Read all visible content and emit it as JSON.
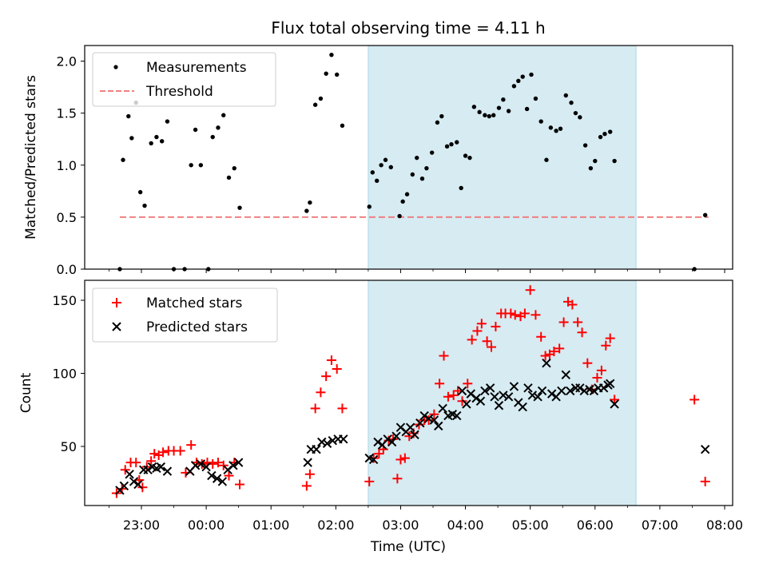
{
  "figure_title": "Flux total observing time = 4.11 h",
  "colors": {
    "measurement": "#000000",
    "threshold": "#f08080",
    "matched": "#ff0000",
    "predicted": "#000000",
    "span": "#add8e6"
  },
  "chart_data": [
    {
      "type": "scatter",
      "title": "Flux total observing time = 4.11 h",
      "xlabel": "",
      "ylabel": "Matched/Predicted stars",
      "xlim": [
        "22:15",
        "08:10"
      ],
      "ylim": [
        0,
        2.15
      ],
      "yticks": [
        "0.0",
        "0.5",
        "1.0",
        "1.5",
        "2.0"
      ],
      "legend": {
        "position": "upper-left",
        "entries": [
          "Measurements",
          "Threshold"
        ]
      },
      "shaded_span": [
        "02:30",
        "06:38"
      ],
      "threshold": {
        "name": "Threshold",
        "value": 0.5,
        "x_start": "22:40",
        "x_end": "07:45"
      },
      "series": [
        {
          "name": "Measurements",
          "points": [
            [
              "22:40",
              0.0
            ],
            [
              "22:43",
              1.05
            ],
            [
              "22:48",
              1.47
            ],
            [
              "22:51",
              1.26
            ],
            [
              "22:55",
              1.6
            ],
            [
              "22:59",
              0.74
            ],
            [
              "23:03",
              0.61
            ],
            [
              "23:09",
              1.21
            ],
            [
              "23:14",
              1.27
            ],
            [
              "23:19",
              1.23
            ],
            [
              "23:24",
              1.42
            ],
            [
              "23:30",
              0.0
            ],
            [
              "23:40",
              0.0
            ],
            [
              "23:46",
              1.0
            ],
            [
              "23:50",
              1.34
            ],
            [
              "23:55",
              1.0
            ],
            [
              "00:02",
              0.0
            ],
            [
              "00:06",
              1.27
            ],
            [
              "00:11",
              1.36
            ],
            [
              "00:16",
              1.48
            ],
            [
              "00:21",
              0.88
            ],
            [
              "00:26",
              0.97
            ],
            [
              "00:31",
              0.59
            ],
            [
              "01:33",
              0.56
            ],
            [
              "01:36",
              0.64
            ],
            [
              "01:41",
              1.58
            ],
            [
              "01:46",
              1.64
            ],
            [
              "01:51",
              1.88
            ],
            [
              "01:56",
              2.06
            ],
            [
              "02:01",
              1.87
            ],
            [
              "02:06",
              1.38
            ],
            [
              "02:31",
              0.6
            ],
            [
              "02:34",
              0.93
            ],
            [
              "02:38",
              0.85
            ],
            [
              "02:42",
              1.0
            ],
            [
              "02:46",
              1.05
            ],
            [
              "02:51",
              0.98
            ],
            [
              "02:59",
              0.51
            ],
            [
              "03:02",
              0.65
            ],
            [
              "03:06",
              0.72
            ],
            [
              "03:11",
              0.91
            ],
            [
              "03:15",
              1.07
            ],
            [
              "03:20",
              0.87
            ],
            [
              "03:24",
              0.97
            ],
            [
              "03:29",
              1.12
            ],
            [
              "03:34",
              1.41
            ],
            [
              "03:38",
              1.47
            ],
            [
              "03:43",
              1.18
            ],
            [
              "03:47",
              1.2
            ],
            [
              "03:52",
              1.22
            ],
            [
              "03:56",
              0.78
            ],
            [
              "04:00",
              1.09
            ],
            [
              "04:04",
              1.07
            ],
            [
              "04:08",
              1.56
            ],
            [
              "04:13",
              1.51
            ],
            [
              "04:18",
              1.48
            ],
            [
              "04:22",
              1.47
            ],
            [
              "04:26",
              1.48
            ],
            [
              "04:31",
              1.55
            ],
            [
              "04:35",
              1.63
            ],
            [
              "04:40",
              1.52
            ],
            [
              "04:45",
              1.76
            ],
            [
              "04:49",
              1.81
            ],
            [
              "04:53",
              1.85
            ],
            [
              "04:57",
              1.54
            ],
            [
              "05:01",
              1.87
            ],
            [
              "05:05",
              1.64
            ],
            [
              "05:10",
              1.42
            ],
            [
              "05:15",
              1.05
            ],
            [
              "05:19",
              1.36
            ],
            [
              "05:24",
              1.33
            ],
            [
              "05:28",
              1.35
            ],
            [
              "05:33",
              1.67
            ],
            [
              "05:38",
              1.6
            ],
            [
              "05:42",
              1.5
            ],
            [
              "05:46",
              1.46
            ],
            [
              "05:51",
              1.19
            ],
            [
              "05:56",
              0.97
            ],
            [
              "06:00",
              1.04
            ],
            [
              "06:05",
              1.27
            ],
            [
              "06:09",
              1.3
            ],
            [
              "06:14",
              1.32
            ],
            [
              "06:18",
              1.04
            ],
            [
              "07:32",
              0.0
            ],
            [
              "07:42",
              0.52
            ]
          ]
        }
      ]
    },
    {
      "type": "scatter",
      "title": "",
      "xlabel": "Time (UTC)",
      "ylabel": "Count",
      "xlim": [
        "22:15",
        "08:10"
      ],
      "ylim": [
        12,
        164
      ],
      "yticks": [
        "50",
        "100",
        "150"
      ],
      "xticks": [
        "23:00",
        "00:00",
        "01:00",
        "02:00",
        "03:00",
        "04:00",
        "05:00",
        "06:00",
        "07:00",
        "08:00"
      ],
      "legend": {
        "position": "upper-left",
        "entries": [
          "Matched stars",
          "Predicted stars"
        ]
      },
      "shaded_span": [
        "02:30",
        "06:38"
      ],
      "series": [
        {
          "name": "Matched stars",
          "marker": "plus",
          "points": [
            [
              "22:37",
              18
            ],
            [
              "22:42",
              21
            ],
            [
              "22:45",
              34
            ],
            [
              "22:50",
              39
            ],
            [
              "22:55",
              39
            ],
            [
              "22:58",
              27
            ],
            [
              "23:01",
              22
            ],
            [
              "23:05",
              36
            ],
            [
              "23:09",
              40
            ],
            [
              "23:12",
              45
            ],
            [
              "23:16",
              44
            ],
            [
              "23:20",
              46
            ],
            [
              "23:25",
              47
            ],
            [
              "23:30",
              47
            ],
            [
              "23:36",
              47
            ],
            [
              "23:41",
              32
            ],
            [
              "23:46",
              51
            ],
            [
              "23:51",
              39
            ],
            [
              "23:56",
              38
            ],
            [
              "00:01",
              39
            ],
            [
              "00:06",
              38
            ],
            [
              "00:11",
              39
            ],
            [
              "00:16",
              37
            ],
            [
              "00:21",
              30
            ],
            [
              "00:26",
              39
            ],
            [
              "00:31",
              24
            ],
            [
              "01:33",
              23
            ],
            [
              "01:36",
              31
            ],
            [
              "01:41",
              76
            ],
            [
              "01:46",
              87
            ],
            [
              "01:51",
              98
            ],
            [
              "01:56",
              109
            ],
            [
              "02:01",
              103
            ],
            [
              "02:06",
              76
            ],
            [
              "02:31",
              26
            ],
            [
              "02:35",
              42
            ],
            [
              "02:40",
              45
            ],
            [
              "02:44",
              48
            ],
            [
              "02:49",
              54
            ],
            [
              "02:53",
              55
            ],
            [
              "02:57",
              28
            ],
            [
              "03:00",
              41
            ],
            [
              "03:04",
              42
            ],
            [
              "03:08",
              57
            ],
            [
              "03:12",
              59
            ],
            [
              "03:17",
              65
            ],
            [
              "03:22",
              68
            ],
            [
              "03:26",
              68
            ],
            [
              "03:31",
              72
            ],
            [
              "03:36",
              93
            ],
            [
              "03:40",
              112
            ],
            [
              "03:44",
              84
            ],
            [
              "03:49",
              85
            ],
            [
              "03:53",
              88
            ],
            [
              "03:57",
              81
            ],
            [
              "04:02",
              93
            ],
            [
              "04:06",
              123
            ],
            [
              "04:11",
              129
            ],
            [
              "04:15",
              134
            ],
            [
              "04:20",
              122
            ],
            [
              "04:24",
              118
            ],
            [
              "04:28",
              132
            ],
            [
              "04:33",
              141
            ],
            [
              "04:37",
              141
            ],
            [
              "04:42",
              141
            ],
            [
              "04:46",
              140
            ],
            [
              "04:51",
              139
            ],
            [
              "04:55",
              141
            ],
            [
              "05:00",
              157
            ],
            [
              "05:05",
              140
            ],
            [
              "05:10",
              125
            ],
            [
              "05:14",
              112
            ],
            [
              "05:18",
              113
            ],
            [
              "05:22",
              115
            ],
            [
              "05:27",
              117
            ],
            [
              "05:31",
              135
            ],
            [
              "05:35",
              149
            ],
            [
              "05:39",
              147
            ],
            [
              "05:44",
              135
            ],
            [
              "05:48",
              128
            ],
            [
              "05:53",
              107
            ],
            [
              "05:57",
              89
            ],
            [
              "06:02",
              97
            ],
            [
              "06:06",
              102
            ],
            [
              "06:10",
              119
            ],
            [
              "06:14",
              124
            ],
            [
              "06:18",
              82
            ],
            [
              "07:32",
              82
            ],
            [
              "07:42",
              26
            ]
          ]
        },
        {
          "name": "Predicted stars",
          "marker": "x",
          "points": [
            [
              "22:40",
              20
            ],
            [
              "22:44",
              23
            ],
            [
              "22:49",
              31
            ],
            [
              "22:53",
              26
            ],
            [
              "22:57",
              24
            ],
            [
              "23:02",
              34
            ],
            [
              "23:06",
              34
            ],
            [
              "23:10",
              36
            ],
            [
              "23:14",
              35
            ],
            [
              "23:18",
              36
            ],
            [
              "23:24",
              33
            ],
            [
              "23:45",
              33
            ],
            [
              "23:50",
              37
            ],
            [
              "23:55",
              38
            ],
            [
              "00:00",
              36
            ],
            [
              "00:05",
              30
            ],
            [
              "00:10",
              28
            ],
            [
              "00:15",
              26
            ],
            [
              "00:20",
              34
            ],
            [
              "00:25",
              37
            ],
            [
              "00:30",
              39
            ],
            [
              "01:34",
              39
            ],
            [
              "01:37",
              48
            ],
            [
              "01:42",
              48
            ],
            [
              "01:47",
              53
            ],
            [
              "01:52",
              52
            ],
            [
              "01:57",
              54
            ],
            [
              "02:02",
              55
            ],
            [
              "02:07",
              55
            ],
            [
              "02:31",
              42
            ],
            [
              "02:35",
              41
            ],
            [
              "02:39",
              53
            ],
            [
              "02:43",
              51
            ],
            [
              "02:48",
              55
            ],
            [
              "02:52",
              53
            ],
            [
              "02:56",
              57
            ],
            [
              "03:00",
              63
            ],
            [
              "03:05",
              60
            ],
            [
              "03:09",
              63
            ],
            [
              "03:13",
              58
            ],
            [
              "03:18",
              66
            ],
            [
              "03:22",
              71
            ],
            [
              "03:26",
              69
            ],
            [
              "03:31",
              68
            ],
            [
              "03:35",
              64
            ],
            [
              "03:39",
              76
            ],
            [
              "03:44",
              71
            ],
            [
              "03:48",
              72
            ],
            [
              "03:52",
              71
            ],
            [
              "03:57",
              88
            ],
            [
              "04:01",
              79
            ],
            [
              "04:05",
              86
            ],
            [
              "04:10",
              83
            ],
            [
              "04:14",
              81
            ],
            [
              "04:18",
              88
            ],
            [
              "04:23",
              90
            ],
            [
              "04:27",
              84
            ],
            [
              "04:31",
              78
            ],
            [
              "04:35",
              85
            ],
            [
              "04:40",
              84
            ],
            [
              "04:45",
              91
            ],
            [
              "04:49",
              80
            ],
            [
              "04:53",
              77
            ],
            [
              "04:58",
              90
            ],
            [
              "05:02",
              85
            ],
            [
              "05:07",
              84
            ],
            [
              "05:11",
              88
            ],
            [
              "05:15",
              107
            ],
            [
              "05:20",
              86
            ],
            [
              "05:24",
              84
            ],
            [
              "05:29",
              88
            ],
            [
              "05:33",
              99
            ],
            [
              "05:37",
              88
            ],
            [
              "05:42",
              90
            ],
            [
              "05:46",
              90
            ],
            [
              "05:50",
              88
            ],
            [
              "05:55",
              89
            ],
            [
              "05:59",
              88
            ],
            [
              "06:03",
              90
            ],
            [
              "06:08",
              90
            ],
            [
              "06:12",
              92
            ],
            [
              "06:14",
              93
            ],
            [
              "06:18",
              79
            ],
            [
              "07:42",
              48
            ]
          ]
        }
      ]
    }
  ]
}
